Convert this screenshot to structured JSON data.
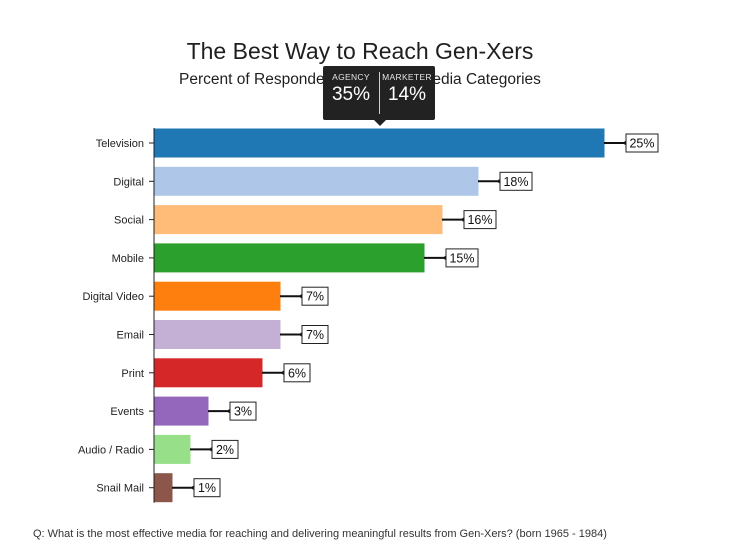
{
  "chart_data": {
    "type": "bar",
    "orientation": "horizontal",
    "title": "The Best Way to Reach Gen-Xers",
    "subtitle": "Percent of Respondents Choosing Media Categories",
    "categories": [
      "Television",
      "Digital",
      "Social",
      "Mobile",
      "Digital Video",
      "Email",
      "Print",
      "Events",
      "Audio / Radio",
      "Snail Mail"
    ],
    "values": [
      25,
      18,
      16,
      15,
      7,
      7,
      6,
      3,
      2,
      1
    ],
    "value_labels": [
      "25%",
      "18%",
      "16%",
      "15%",
      "7%",
      "7%",
      "6%",
      "3%",
      "2%",
      "1%"
    ],
    "colors": [
      "#1f77b4",
      "#aec7e8",
      "#ffbb78",
      "#2ca02c",
      "#ff7f0e",
      "#c5b0d5",
      "#d62728",
      "#9467bd",
      "#98df8a",
      "#8c564b"
    ],
    "xlim": [
      0,
      25
    ],
    "xlabel": "",
    "ylabel": "",
    "grid": false,
    "legend": "none"
  },
  "tooltip": {
    "agency_label": "AGENCY",
    "agency_value": "35%",
    "marketer_label": "MARKETER",
    "marketer_value": "14%"
  },
  "footnote": "Q: What is the most effective media for reaching and delivering meaningful results from Gen-Xers? (born 1965 - 1984)"
}
